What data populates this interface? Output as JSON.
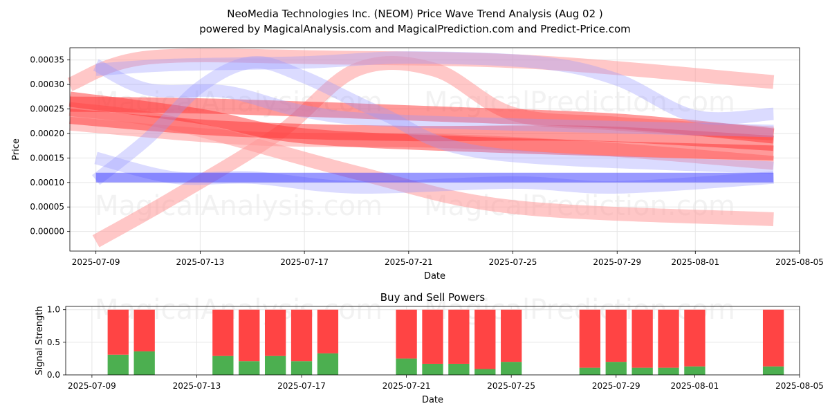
{
  "header": {
    "title": "NeoMedia Technologies Inc. (NEOM) Price Wave Trend Analysis (Aug 02 )",
    "subtitle": "powered by MagicalAnalysis.com and MagicalPrediction.com and Predict-Price.com"
  },
  "watermarks": [
    "MagicalAnalysis.com",
    "MagicalPrediction.com"
  ],
  "colors": {
    "red_band": "#ff3333",
    "light_red_band": "#ff9999",
    "blue_band": "#3333ff",
    "light_blue_band": "#9999ff",
    "buy": "#4caf50",
    "sell": "#ff4444",
    "grid": "#e6e6e6"
  },
  "chart_data": [
    {
      "type": "line",
      "xlabel": "Date",
      "ylabel": "Price",
      "xlim": [
        "2025-07-08",
        "2025-08-05"
      ],
      "ylim": [
        -4e-05,
        0.000375
      ],
      "x_ticks": [
        "2025-07-09",
        "2025-07-13",
        "2025-07-17",
        "2025-07-21",
        "2025-07-25",
        "2025-07-29",
        "2025-08-01",
        "2025-08-05"
      ],
      "y_ticks": [
        "0.00000",
        "0.00005",
        "0.00010",
        "0.00015",
        "0.00020",
        "0.00025",
        "0.00030",
        "0.00035"
      ],
      "grid": true,
      "series": [
        {
          "color": "light_red",
          "points": [
            [
              "2025-07-08",
              0.00022
            ],
            [
              "2025-07-15",
              0.00019
            ],
            [
              "2025-07-22",
              0.000185
            ],
            [
              "2025-07-28",
              0.00017
            ],
            [
              "2025-08-04",
              0.00014
            ]
          ]
        },
        {
          "color": "light_red",
          "points": [
            [
              "2025-07-08",
              0.00025
            ],
            [
              "2025-07-12",
              0.00022
            ],
            [
              "2025-07-19",
              0.00012
            ],
            [
              "2025-07-25",
              5e-05
            ],
            [
              "2025-08-04",
              2.5e-05
            ]
          ]
        },
        {
          "color": "light_red",
          "points": [
            [
              "2025-07-09",
              -2e-05
            ],
            [
              "2025-07-12",
              7e-05
            ],
            [
              "2025-07-16",
              0.0002
            ],
            [
              "2025-07-19",
              0.00033
            ],
            [
              "2025-07-22",
              0.00033
            ],
            [
              "2025-07-25",
              0.00024
            ],
            [
              "2025-07-29",
              0.00022
            ],
            [
              "2025-08-04",
              0.0002
            ]
          ]
        },
        {
          "color": "light_red",
          "points": [
            [
              "2025-07-08",
              0.0003
            ],
            [
              "2025-07-11",
              0.000355
            ],
            [
              "2025-07-18",
              0.000355
            ],
            [
              "2025-07-26",
              0.000345
            ],
            [
              "2025-08-04",
              0.000305
            ]
          ]
        },
        {
          "color": "red",
          "points": [
            [
              "2025-07-08",
              0.00027
            ],
            [
              "2025-07-13",
              0.000235
            ],
            [
              "2025-07-17",
              0.000195
            ],
            [
              "2025-07-25",
              0.000175
            ],
            [
              "2025-08-04",
              0.00016
            ]
          ]
        },
        {
          "color": "red",
          "points": [
            [
              "2025-07-08",
              0.00026
            ],
            [
              "2025-07-14",
              0.000255
            ],
            [
              "2025-07-22",
              0.00024
            ],
            [
              "2025-07-29",
              0.000225
            ],
            [
              "2025-08-04",
              0.000195
            ]
          ]
        },
        {
          "color": "red",
          "points": [
            [
              "2025-07-08",
              0.000235
            ],
            [
              "2025-07-14",
              0.00021
            ],
            [
              "2025-07-21",
              0.0002
            ],
            [
              "2025-07-28",
              0.0002
            ],
            [
              "2025-08-04",
              0.00018
            ]
          ]
        },
        {
          "color": "light_blue",
          "points": [
            [
              "2025-07-09",
              0.000105
            ],
            [
              "2025-07-11",
              0.00019
            ],
            [
              "2025-07-13",
              0.000295
            ],
            [
              "2025-07-15",
              0.000345
            ],
            [
              "2025-07-17",
              0.000315
            ],
            [
              "2025-07-20",
              0.00024
            ],
            [
              "2025-07-24",
              0.00016
            ],
            [
              "2025-08-04",
              0.00013
            ]
          ]
        },
        {
          "color": "light_blue",
          "points": [
            [
              "2025-07-09",
              0.00034
            ],
            [
              "2025-07-11",
              0.00029
            ],
            [
              "2025-07-14",
              0.000285
            ],
            [
              "2025-07-17",
              0.000245
            ],
            [
              "2025-07-21",
              0.000225
            ],
            [
              "2025-08-04",
              0.000205
            ]
          ]
        },
        {
          "color": "light_blue",
          "points": [
            [
              "2025-07-09",
              0.00015
            ],
            [
              "2025-07-12",
              0.00011
            ],
            [
              "2025-07-15",
              0.00011
            ],
            [
              "2025-07-19",
              9e-05
            ],
            [
              "2025-07-25",
              0.0001
            ],
            [
              "2025-07-29",
              9e-05
            ],
            [
              "2025-08-04",
              0.00011
            ]
          ]
        },
        {
          "color": "light_blue",
          "points": [
            [
              "2025-07-09",
              0.00033
            ],
            [
              "2025-07-12",
              0.00034
            ],
            [
              "2025-07-17",
              0.000345
            ],
            [
              "2025-07-21",
              0.000355
            ],
            [
              "2025-07-26",
              0.000345
            ],
            [
              "2025-07-29",
              0.00031
            ],
            [
              "2025-08-01",
              0.000235
            ],
            [
              "2025-08-04",
              0.00024
            ]
          ]
        },
        {
          "color": "blue",
          "points": [
            [
              "2025-07-09",
              0.00011
            ],
            [
              "2025-08-04",
              0.00011
            ]
          ]
        }
      ]
    },
    {
      "type": "bar",
      "title": "Buy and Sell Powers",
      "xlabel": "Date",
      "ylabel": "Signal Strength",
      "xlim": [
        "2025-07-08",
        "2025-08-05"
      ],
      "ylim": [
        0,
        1.05
      ],
      "x_ticks": [
        "2025-07-09",
        "2025-07-13",
        "2025-07-17",
        "2025-07-21",
        "2025-07-25",
        "2025-07-29",
        "2025-08-01",
        "2025-08-05"
      ],
      "y_ticks": [
        "0.0",
        "0.5",
        "1.0"
      ],
      "grid": true,
      "x": [
        "2025-07-10",
        "2025-07-11",
        "2025-07-14",
        "2025-07-15",
        "2025-07-16",
        "2025-07-17",
        "2025-07-18",
        "2025-07-21",
        "2025-07-22",
        "2025-07-23",
        "2025-07-24",
        "2025-07-25",
        "2025-07-28",
        "2025-07-29",
        "2025-07-30",
        "2025-07-31",
        "2025-08-01",
        "2025-08-04"
      ],
      "series": [
        {
          "key": "buy",
          "values": [
            0.31,
            0.36,
            0.29,
            0.21,
            0.29,
            0.21,
            0.33,
            0.25,
            0.17,
            0.17,
            0.09,
            0.2,
            0.11,
            0.2,
            0.11,
            0.11,
            0.13,
            0.13
          ]
        },
        {
          "key": "sell",
          "values": [
            0.69,
            0.64,
            0.71,
            0.79,
            0.71,
            0.79,
            0.67,
            0.75,
            0.83,
            0.83,
            0.91,
            0.8,
            0.89,
            0.8,
            0.89,
            0.89,
            0.87,
            0.87
          ]
        }
      ]
    }
  ]
}
